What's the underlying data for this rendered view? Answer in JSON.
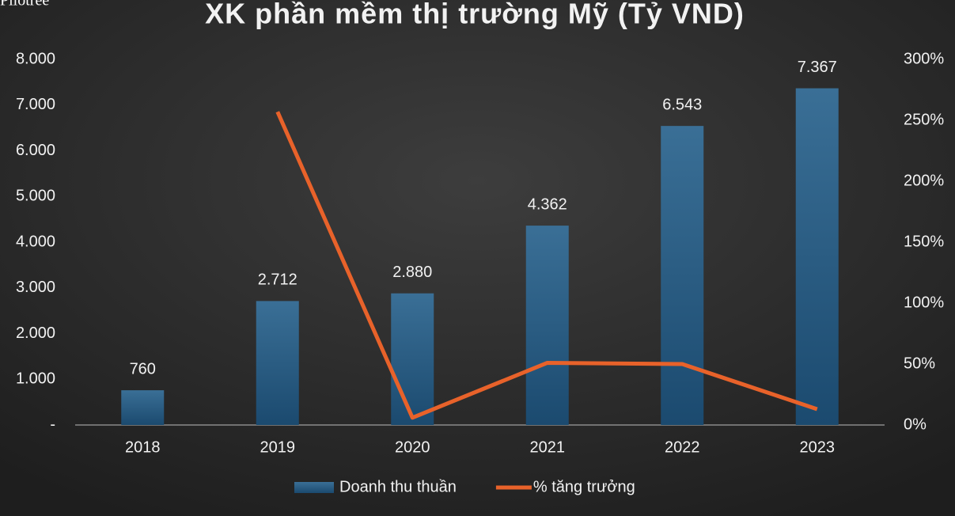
{
  "watermark": "Pilotree",
  "chart_data": {
    "type": "combo",
    "title": "XK phần mềm thị trường Mỹ (Tỷ VND)",
    "categories": [
      "2018",
      "2019",
      "2020",
      "2021",
      "2022",
      "2023"
    ],
    "series": [
      {
        "name": "Doanh thu thuần",
        "type": "bar",
        "color": "#25577d",
        "values": [
          760,
          2712,
          2880,
          4362,
          6543,
          7367
        ],
        "value_labels": [
          "760",
          "2.712",
          "2.880",
          "4.362",
          "6.543",
          "7.367"
        ]
      },
      {
        "name": "% tăng trưởng",
        "type": "line",
        "axis": "y2",
        "color": "#e8622a",
        "values": [
          null,
          257,
          6,
          51,
          50,
          13
        ]
      }
    ],
    "ylim": [
      0,
      8000
    ],
    "yticks": [
      {
        "value": 0,
        "label": "-"
      },
      {
        "value": 1000,
        "label": "1.000"
      },
      {
        "value": 2000,
        "label": "2.000"
      },
      {
        "value": 3000,
        "label": "3.000"
      },
      {
        "value": 4000,
        "label": "4.000"
      },
      {
        "value": 5000,
        "label": "5.000"
      },
      {
        "value": 6000,
        "label": "6.000"
      },
      {
        "value": 7000,
        "label": "7.000"
      },
      {
        "value": 8000,
        "label": "8.000"
      }
    ],
    "y2lim": [
      0,
      300
    ],
    "y2ticks": [
      {
        "value": 0,
        "label": "0%"
      },
      {
        "value": 50,
        "label": "50%"
      },
      {
        "value": 100,
        "label": "100%"
      },
      {
        "value": 150,
        "label": "150%"
      },
      {
        "value": 200,
        "label": "200%"
      },
      {
        "value": 250,
        "label": "250%"
      },
      {
        "value": 300,
        "label": "300%"
      }
    ],
    "legend": "bottom"
  }
}
